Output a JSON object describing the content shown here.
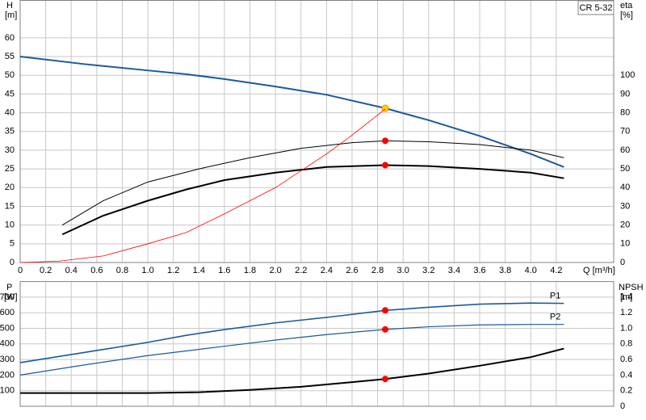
{
  "chart_data": [
    {
      "type": "line",
      "title": "CR 5-32",
      "ylabel": "H",
      "yunit": "[m]",
      "y2label": "eta",
      "y2unit": "[%]",
      "xlabel": "Q [m³/h]",
      "xlim": [
        0,
        4.65
      ],
      "xticks": [
        0,
        0.2,
        0.4,
        0.6,
        0.8,
        {
          "value": 1,
          "label": "1.0"
        },
        1.2,
        1.4,
        1.6,
        1.8,
        {
          "value": 2,
          "label": "2.0"
        },
        2.2,
        2.4,
        2.6,
        2.8,
        {
          "value": 3,
          "label": "3.0"
        },
        3.2,
        3.4,
        3.6,
        3.8,
        {
          "value": 4,
          "label": "4.0"
        },
        4.2
      ],
      "ylim": [
        0,
        70
      ],
      "yticks": [
        0,
        5,
        10,
        15,
        20,
        25,
        30,
        35,
        40,
        45,
        50,
        55,
        60
      ],
      "y2lim": [
        0,
        140
      ],
      "y2ticks": [
        0,
        10,
        20,
        30,
        40,
        50,
        60,
        70,
        80,
        90,
        100
      ],
      "grid": true,
      "operating_point_x": 2.86,
      "series": [
        {
          "color": "#1a5a9c",
          "x": [
            0,
            0.5,
            1.0,
            1.3,
            1.6,
            2.0,
            2.4,
            2.86,
            3.2,
            3.6,
            4.0,
            4.26
          ],
          "values": [
            55,
            53,
            51.3,
            50.3,
            49,
            47,
            44.8,
            41.2,
            38,
            33.8,
            29,
            25.5
          ]
        },
        {
          "color": "#000000",
          "axis": "y2",
          "x": [
            0.33,
            0.65,
            1.0,
            1.4,
            1.8,
            2.2,
            2.6,
            2.86,
            3.2,
            3.6,
            4.0,
            4.26
          ],
          "values": [
            20,
            33,
            43,
            50,
            56,
            61,
            64,
            65,
            64.5,
            63,
            60,
            56
          ]
        },
        {
          "color": "#000000",
          "axis": "y2",
          "x": [
            0.33,
            0.65,
            1.0,
            1.3,
            1.6,
            2.0,
            2.4,
            2.86,
            3.2,
            3.6,
            4.0,
            4.26
          ],
          "values": [
            15,
            25,
            33,
            39,
            44,
            48,
            51,
            52,
            51.5,
            50,
            48,
            45
          ]
        },
        {
          "color": "#ff0000",
          "axis": "y2",
          "x": [
            0,
            0.3,
            0.65,
            1.0,
            1.3,
            1.6,
            2.0,
            2.4,
            2.6,
            2.86
          ],
          "values": [
            0,
            0.7,
            3.5,
            10,
            16,
            26,
            40,
            58,
            68,
            82
          ]
        }
      ]
    },
    {
      "type": "line",
      "ylabel": "P",
      "yunit": "[W]",
      "y2label": "NPSH",
      "y2unit": "[m]",
      "xlim": [
        0,
        4.65
      ],
      "xticks": [
        0,
        0.2,
        0.4,
        0.6,
        0.8,
        1,
        1.2,
        1.4,
        1.6,
        1.8,
        2,
        2.2,
        2.4,
        2.6,
        2.8,
        3,
        3.2,
        3.4,
        3.6,
        3.8,
        4,
        4.2
      ],
      "ylim": [
        0,
        800
      ],
      "yticks": [
        100,
        200,
        300,
        400,
        500,
        600,
        700
      ],
      "y2lim": [
        0,
        1.6
      ],
      "y2ticks": [
        0,
        0.2,
        0.4,
        0.6,
        0.8,
        {
          "value": 1,
          "label": "1.0"
        },
        1.2,
        1.4
      ],
      "grid": true,
      "operating_point_x": 2.86,
      "series": [
        {
          "name": "P1",
          "color": "#1a5a9c",
          "x": [
            0,
            0.5,
            1.0,
            1.3,
            1.6,
            2.0,
            2.4,
            2.86,
            3.2,
            3.6,
            4.0,
            4.26
          ],
          "values": [
            280,
            345,
            410,
            455,
            492,
            535,
            570,
            615,
            635,
            655,
            662,
            660
          ]
        },
        {
          "name": "P2",
          "color": "#1a5a9c",
          "x": [
            0,
            0.5,
            1.0,
            1.6,
            2.0,
            2.4,
            2.86,
            3.2,
            3.6,
            4.0,
            4.26
          ],
          "values": [
            200,
            265,
            325,
            385,
            425,
            460,
            493,
            510,
            522,
            525,
            525
          ]
        },
        {
          "color": "#000000",
          "axis": "y2",
          "x": [
            0,
            1.0,
            1.4,
            1.8,
            2.2,
            2.6,
            2.86,
            3.2,
            3.6,
            4.0,
            4.26
          ],
          "values": [
            0.17,
            0.17,
            0.18,
            0.21,
            0.25,
            0.31,
            0.35,
            0.42,
            0.52,
            0.63,
            0.74
          ]
        }
      ]
    }
  ]
}
